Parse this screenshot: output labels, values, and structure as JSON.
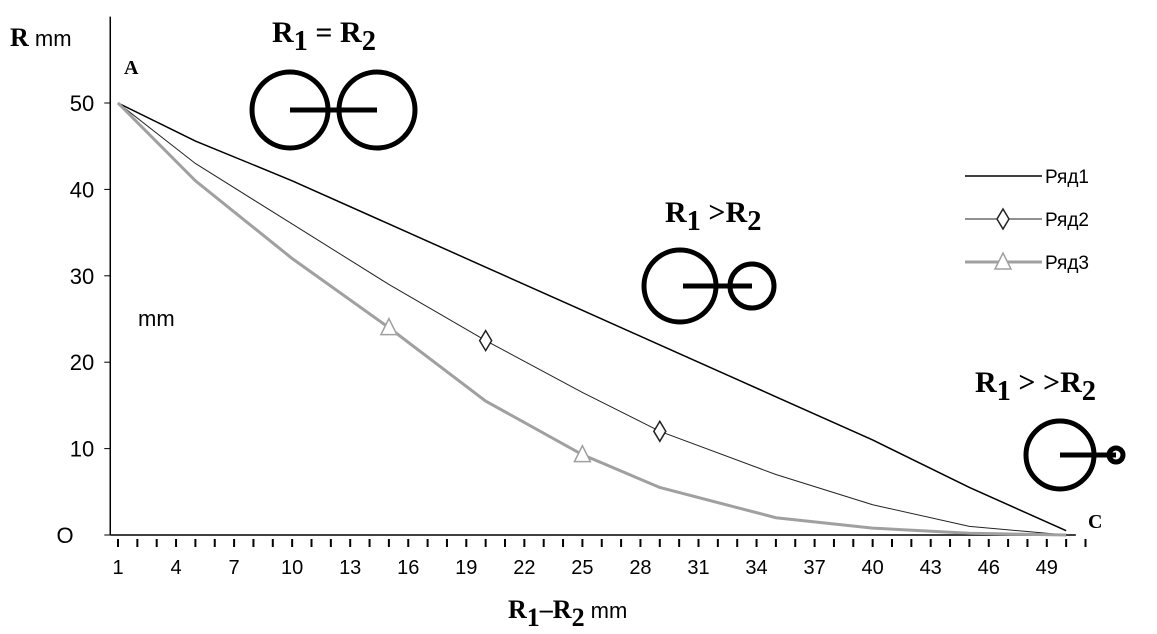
{
  "chart_data": {
    "type": "line",
    "x": [
      1,
      5,
      10,
      15,
      20,
      25,
      29,
      35,
      40,
      45,
      50
    ],
    "xlim": [
      0.6,
      50.5
    ],
    "xticks": [
      1,
      4,
      7,
      10,
      13,
      16,
      19,
      22,
      25,
      28,
      31,
      34,
      37,
      40,
      43,
      46,
      49
    ],
    "xminorticks": [
      1,
      2,
      3,
      4,
      5,
      6,
      7,
      8,
      9,
      10,
      11,
      12,
      13,
      14,
      15,
      16,
      17,
      18,
      19,
      20,
      21,
      22,
      23,
      24,
      25,
      26,
      27,
      28,
      29,
      30,
      31,
      32,
      33,
      34,
      35,
      36,
      37,
      38,
      39,
      40,
      41,
      42,
      43,
      44,
      45,
      46,
      47,
      48,
      49,
      50,
      51
    ],
    "ylim": [
      0,
      60
    ],
    "yticks": [
      {
        "value": 0,
        "label": "O"
      },
      10,
      20,
      30,
      40,
      50
    ],
    "x_label": [
      "R",
      "1",
      "–R",
      "2",
      " mm"
    ],
    "y_label": [
      "R",
      " mm"
    ],
    "series": [
      {
        "name": "Ряд1",
        "color": "#000000",
        "width": 1.5,
        "values": [
          50,
          45.6,
          41,
          36,
          31,
          26,
          22,
          16,
          11,
          5.5,
          0.5
        ],
        "markers": []
      },
      {
        "name": "Ряд2",
        "color": "#222222",
        "width": 1,
        "marker": "diamond",
        "values": [
          50,
          43,
          36,
          29,
          22.5,
          16.5,
          12,
          7,
          3.5,
          1,
          0
        ],
        "markers": [
          20,
          29
        ]
      },
      {
        "name": "Ряд3",
        "color": "#a0a0a0",
        "width": 3,
        "marker": "triangle",
        "values": [
          50,
          41,
          32,
          24,
          15.5,
          9.3,
          5.5,
          2,
          0.8,
          0.2,
          0
        ],
        "markers": [
          15,
          25
        ]
      }
    ],
    "annotations": {
      "a": "A",
      "c": "C",
      "mm": "mm",
      "eq": [
        "R",
        "1",
        " = R",
        "2"
      ],
      "gt": [
        "R",
        "1",
        " >R",
        "2"
      ],
      "ggt": [
        "R",
        "1",
        " > >R",
        "2"
      ]
    }
  }
}
